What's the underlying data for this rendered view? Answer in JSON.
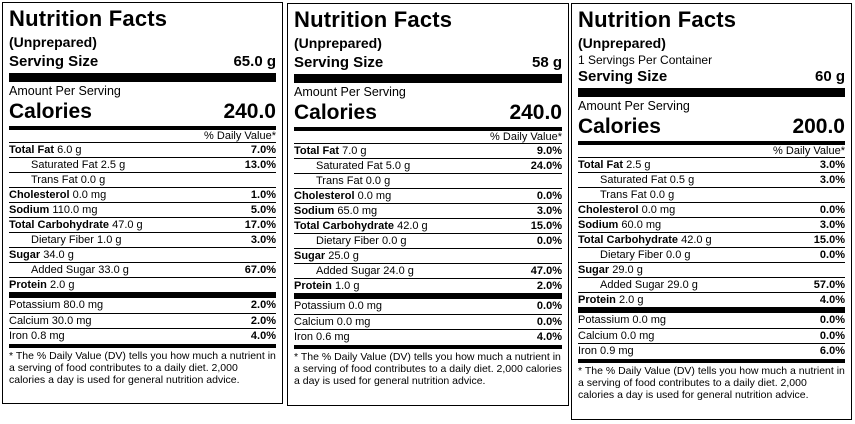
{
  "labels": [
    {
      "title": "Nutrition Facts",
      "subtitle": "(Unprepared)",
      "servings_per_container": "",
      "serving_size_label": "Serving Size",
      "serving_size_value": "65.0 g",
      "amount_per_serving": "Amount Per Serving",
      "calories_label": "Calories",
      "calories_value": "240.0",
      "dv_header": "% Daily Value*",
      "rows": [
        {
          "name": "Total Fat",
          "value": "6.0 g",
          "dv": "7.0%",
          "bold": true,
          "indent": 0
        },
        {
          "name": "Saturated Fat",
          "value": "2.5 g",
          "dv": "13.0%",
          "bold": false,
          "indent": 1
        },
        {
          "name": "Trans Fat",
          "value": "0.0 g",
          "dv": "",
          "bold": false,
          "indent": 1
        },
        {
          "name": "Cholesterol",
          "value": "0.0 mg",
          "dv": "1.0%",
          "bold": true,
          "indent": 0
        },
        {
          "name": "Sodium",
          "value": "110.0 mg",
          "dv": "5.0%",
          "bold": true,
          "indent": 0
        },
        {
          "name": "Total Carbohydrate",
          "value": "47.0 g",
          "dv": "17.0%",
          "bold": true,
          "indent": 0
        },
        {
          "name": "Dietary Fiber",
          "value": "1.0 g",
          "dv": "3.0%",
          "bold": false,
          "indent": 1
        },
        {
          "name": "Sugar",
          "value": "34.0 g",
          "dv": "",
          "bold": true,
          "indent": 0
        },
        {
          "name": "Added Sugar",
          "value": "33.0 g",
          "dv": "67.0%",
          "bold": false,
          "indent": 2
        },
        {
          "name": "Protein",
          "value": "2.0 g",
          "dv": "",
          "bold": true,
          "indent": 0
        }
      ],
      "minerals": [
        {
          "name": "Potassium",
          "value": "80.0 mg",
          "dv": "2.0%"
        },
        {
          "name": "Calcium",
          "value": "30.0 mg",
          "dv": "2.0%"
        },
        {
          "name": "Iron",
          "value": "0.8 mg",
          "dv": "4.0%"
        }
      ],
      "footnote": "* The % Daily Value (DV) tells you how much a nutrient in a serving of food contributes to a daily diet. 2,000 calories a day is used for general nutrition advice."
    },
    {
      "title": "Nutrition Facts",
      "subtitle": "(Unprepared)",
      "servings_per_container": "",
      "serving_size_label": "Serving Size",
      "serving_size_value": "58 g",
      "amount_per_serving": "Amount Per Serving",
      "calories_label": "Calories",
      "calories_value": "240.0",
      "dv_header": "% Daily Value*",
      "rows": [
        {
          "name": "Total Fat",
          "value": "7.0 g",
          "dv": "9.0%",
          "bold": true,
          "indent": 0
        },
        {
          "name": "Saturated Fat",
          "value": "5.0 g",
          "dv": "24.0%",
          "bold": false,
          "indent": 1
        },
        {
          "name": "Trans Fat",
          "value": "0.0 g",
          "dv": "",
          "bold": false,
          "indent": 1
        },
        {
          "name": "Cholesterol",
          "value": "0.0 mg",
          "dv": "0.0%",
          "bold": true,
          "indent": 0
        },
        {
          "name": "Sodium",
          "value": "65.0 mg",
          "dv": "3.0%",
          "bold": true,
          "indent": 0
        },
        {
          "name": "Total Carbohydrate",
          "value": "42.0 g",
          "dv": "15.0%",
          "bold": true,
          "indent": 0
        },
        {
          "name": "Dietary Fiber",
          "value": "0.0 g",
          "dv": "0.0%",
          "bold": false,
          "indent": 1
        },
        {
          "name": "Sugar",
          "value": "25.0 g",
          "dv": "",
          "bold": true,
          "indent": 0
        },
        {
          "name": "Added Sugar",
          "value": "24.0 g",
          "dv": "47.0%",
          "bold": false,
          "indent": 2
        },
        {
          "name": "Protein",
          "value": "1.0 g",
          "dv": "2.0%",
          "bold": true,
          "indent": 0
        }
      ],
      "minerals": [
        {
          "name": "Potassium",
          "value": "0.0 mg",
          "dv": "0.0%"
        },
        {
          "name": "Calcium",
          "value": "0.0 mg",
          "dv": "0.0%"
        },
        {
          "name": "Iron",
          "value": "0.6 mg",
          "dv": "4.0%"
        }
      ],
      "footnote": "* The % Daily Value (DV) tells you how much a nutrient in a serving of food contributes to a daily diet. 2,000 calories a day is used for general nutrition advice."
    },
    {
      "title": "Nutrition Facts",
      "subtitle": "(Unprepared)",
      "servings_per_container": "1 Servings Per Container",
      "serving_size_label": "Serving Size",
      "serving_size_value": "60 g",
      "amount_per_serving": "Amount Per Serving",
      "calories_label": "Calories",
      "calories_value": "200.0",
      "dv_header": "% Daily Value*",
      "rows": [
        {
          "name": "Total Fat",
          "value": "2.5 g",
          "dv": "3.0%",
          "bold": true,
          "indent": 0
        },
        {
          "name": "Saturated Fat",
          "value": "0.5 g",
          "dv": "3.0%",
          "bold": false,
          "indent": 1
        },
        {
          "name": "Trans Fat",
          "value": "0.0 g",
          "dv": "",
          "bold": false,
          "indent": 1
        },
        {
          "name": "Cholesterol",
          "value": "0.0 mg",
          "dv": "0.0%",
          "bold": true,
          "indent": 0
        },
        {
          "name": "Sodium",
          "value": "60.0 mg",
          "dv": "3.0%",
          "bold": true,
          "indent": 0
        },
        {
          "name": "Total Carbohydrate",
          "value": "42.0 g",
          "dv": "15.0%",
          "bold": true,
          "indent": 0
        },
        {
          "name": "Dietary Fiber",
          "value": "0.0 g",
          "dv": "0.0%",
          "bold": false,
          "indent": 1
        },
        {
          "name": "Sugar",
          "value": "29.0 g",
          "dv": "",
          "bold": true,
          "indent": 0
        },
        {
          "name": "Added Sugar",
          "value": "29.0 g",
          "dv": "57.0%",
          "bold": false,
          "indent": 2
        },
        {
          "name": "Protein",
          "value": "2.0 g",
          "dv": "4.0%",
          "bold": true,
          "indent": 0
        }
      ],
      "minerals": [
        {
          "name": "Potassium",
          "value": "0.0 mg",
          "dv": "0.0%"
        },
        {
          "name": "Calcium",
          "value": "0.0 mg",
          "dv": "0.0%"
        },
        {
          "name": "Iron",
          "value": "0.9 mg",
          "dv": "6.0%"
        }
      ],
      "footnote": "* The % Daily Value (DV) tells you how much a nutrient in a serving of food contributes to a daily diet. 2,000 calories a day is used for general nutrition advice."
    }
  ]
}
